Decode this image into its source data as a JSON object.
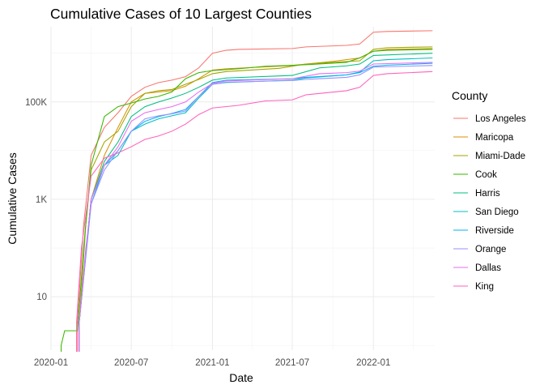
{
  "chart_data": {
    "type": "line",
    "title": "Cumulative Cases of 10 Largest Counties",
    "xlabel": "Date",
    "ylabel": "Cumulative Cases",
    "y_scale": "log10",
    "x_ticks": [
      "2020-01",
      "2020-07",
      "2021-01",
      "2021-07",
      "2022-01"
    ],
    "y_ticks": [
      {
        "value": 10,
        "label": "10"
      },
      {
        "value": 1000,
        "label": "1K"
      },
      {
        "value": 100000,
        "label": "100K"
      }
    ],
    "xlim": [
      "2020-01-01",
      "2022-05-20"
    ],
    "ylim": [
      0.8,
      3500000
    ],
    "grid": true,
    "legend": {
      "title": "County",
      "position": "right"
    },
    "series": [
      {
        "name": "Los Angeles",
        "color": "#F8766D",
        "points": [
          [
            "2020-03-01",
            3
          ],
          [
            "2020-03-15",
            300
          ],
          [
            "2020-04-01",
            8000
          ],
          [
            "2020-05-01",
            30000
          ],
          [
            "2020-06-01",
            60000
          ],
          [
            "2020-07-01",
            130000
          ],
          [
            "2020-08-01",
            200000
          ],
          [
            "2020-09-01",
            250000
          ],
          [
            "2020-10-01",
            280000
          ],
          [
            "2020-11-01",
            330000
          ],
          [
            "2020-12-01",
            500000
          ],
          [
            "2021-01-01",
            1000000
          ],
          [
            "2021-02-01",
            1150000
          ],
          [
            "2021-03-01",
            1200000
          ],
          [
            "2021-07-01",
            1250000
          ],
          [
            "2021-08-01",
            1350000
          ],
          [
            "2021-11-01",
            1450000
          ],
          [
            "2021-12-01",
            1550000
          ],
          [
            "2022-01-01",
            2700000
          ],
          [
            "2022-02-01",
            2800000
          ],
          [
            "2022-05-15",
            2900000
          ]
        ]
      },
      {
        "name": "Maricopa",
        "color": "#D89000",
        "points": [
          [
            "2020-03-05",
            3
          ],
          [
            "2020-04-01",
            1000
          ],
          [
            "2020-05-01",
            8000
          ],
          [
            "2020-06-01",
            30000
          ],
          [
            "2020-07-01",
            100000
          ],
          [
            "2020-08-01",
            150000
          ],
          [
            "2020-09-01",
            160000
          ],
          [
            "2020-10-01",
            170000
          ],
          [
            "2020-11-01",
            210000
          ],
          [
            "2020-12-01",
            300000
          ],
          [
            "2021-01-01",
            450000
          ],
          [
            "2021-02-01",
            480000
          ],
          [
            "2021-07-01",
            560000
          ],
          [
            "2021-10-01",
            680000
          ],
          [
            "2021-12-01",
            800000
          ],
          [
            "2022-01-01",
            1100000
          ],
          [
            "2022-02-01",
            1200000
          ],
          [
            "2022-05-15",
            1250000
          ]
        ]
      },
      {
        "name": "Miami-Dade",
        "color": "#A3A500",
        "points": [
          [
            "2020-03-05",
            3
          ],
          [
            "2020-03-20",
            300
          ],
          [
            "2020-04-01",
            4000
          ],
          [
            "2020-05-01",
            15000
          ],
          [
            "2020-06-01",
            25000
          ],
          [
            "2020-07-01",
            80000
          ],
          [
            "2020-08-01",
            150000
          ],
          [
            "2020-09-01",
            170000
          ],
          [
            "2020-10-01",
            180000
          ],
          [
            "2020-11-01",
            230000
          ],
          [
            "2020-12-01",
            290000
          ],
          [
            "2021-01-01",
            380000
          ],
          [
            "2021-02-01",
            420000
          ],
          [
            "2021-06-01",
            490000
          ],
          [
            "2021-08-01",
            600000
          ],
          [
            "2021-10-01",
            650000
          ],
          [
            "2021-12-01",
            700000
          ],
          [
            "2022-01-01",
            1200000
          ],
          [
            "2022-02-01",
            1300000
          ],
          [
            "2022-05-15",
            1350000
          ]
        ]
      },
      {
        "name": "Cook",
        "color": "#39B600",
        "points": [
          [
            "2020-01-24",
            1
          ],
          [
            "2020-02-01",
            2
          ],
          [
            "2020-03-01",
            2
          ],
          [
            "2020-03-15",
            100
          ],
          [
            "2020-04-01",
            5000
          ],
          [
            "2020-05-01",
            50000
          ],
          [
            "2020-06-01",
            80000
          ],
          [
            "2020-07-01",
            95000
          ],
          [
            "2020-08-01",
            115000
          ],
          [
            "2020-09-01",
            130000
          ],
          [
            "2020-10-01",
            160000
          ],
          [
            "2020-11-01",
            300000
          ],
          [
            "2020-12-01",
            400000
          ],
          [
            "2021-01-01",
            440000
          ],
          [
            "2021-03-01",
            480000
          ],
          [
            "2021-05-01",
            540000
          ],
          [
            "2021-08-01",
            580000
          ],
          [
            "2021-11-01",
            650000
          ],
          [
            "2021-12-01",
            800000
          ],
          [
            "2022-01-01",
            1100000
          ],
          [
            "2022-02-01",
            1150000
          ],
          [
            "2022-05-15",
            1200000
          ]
        ]
      },
      {
        "name": "Harris",
        "color": "#00BF7D",
        "points": [
          [
            "2020-03-05",
            3
          ],
          [
            "2020-04-01",
            1000
          ],
          [
            "2020-05-01",
            6000
          ],
          [
            "2020-06-01",
            15000
          ],
          [
            "2020-07-01",
            50000
          ],
          [
            "2020-08-01",
            80000
          ],
          [
            "2020-09-01",
            100000
          ],
          [
            "2020-10-01",
            120000
          ],
          [
            "2020-11-01",
            150000
          ],
          [
            "2020-12-01",
            200000
          ],
          [
            "2021-01-01",
            280000
          ],
          [
            "2021-02-01",
            310000
          ],
          [
            "2021-07-01",
            350000
          ],
          [
            "2021-09-01",
            500000
          ],
          [
            "2021-11-01",
            550000
          ],
          [
            "2021-12-01",
            600000
          ],
          [
            "2022-01-01",
            900000
          ],
          [
            "2022-05-15",
            1000000
          ]
        ]
      },
      {
        "name": "San Diego",
        "color": "#00BFC4",
        "points": [
          [
            "2020-03-05",
            3
          ],
          [
            "2020-04-01",
            1000
          ],
          [
            "2020-05-01",
            5000
          ],
          [
            "2020-06-01",
            8000
          ],
          [
            "2020-07-01",
            25000
          ],
          [
            "2020-08-01",
            35000
          ],
          [
            "2020-09-01",
            45000
          ],
          [
            "2020-10-01",
            52000
          ],
          [
            "2020-11-01",
            60000
          ],
          [
            "2020-12-01",
            120000
          ],
          [
            "2021-01-01",
            230000
          ],
          [
            "2021-02-01",
            250000
          ],
          [
            "2021-07-01",
            280000
          ],
          [
            "2021-08-01",
            310000
          ],
          [
            "2021-11-01",
            360000
          ],
          [
            "2021-12-01",
            410000
          ],
          [
            "2022-01-01",
            700000
          ],
          [
            "2022-02-01",
            740000
          ],
          [
            "2022-05-15",
            800000
          ]
        ]
      },
      {
        "name": "Riverside",
        "color": "#00B0F6",
        "points": [
          [
            "2020-03-05",
            3
          ],
          [
            "2020-04-01",
            800
          ],
          [
            "2020-05-01",
            5000
          ],
          [
            "2020-06-01",
            10000
          ],
          [
            "2020-07-01",
            25000
          ],
          [
            "2020-08-01",
            40000
          ],
          [
            "2020-09-01",
            50000
          ],
          [
            "2020-10-01",
            58000
          ],
          [
            "2020-11-01",
            70000
          ],
          [
            "2020-12-01",
            130000
          ],
          [
            "2021-01-01",
            250000
          ],
          [
            "2021-02-01",
            280000
          ],
          [
            "2021-07-01",
            300000
          ],
          [
            "2021-08-01",
            320000
          ],
          [
            "2021-11-01",
            360000
          ],
          [
            "2021-12-01",
            400000
          ],
          [
            "2022-01-01",
            540000
          ],
          [
            "2022-02-01",
            570000
          ],
          [
            "2022-05-15",
            620000
          ]
        ]
      },
      {
        "name": "Orange",
        "color": "#9590FF",
        "points": [
          [
            "2020-03-05",
            3
          ],
          [
            "2020-03-20",
            100
          ],
          [
            "2020-04-01",
            800
          ],
          [
            "2020-05-01",
            4000
          ],
          [
            "2020-06-01",
            10000
          ],
          [
            "2020-07-01",
            25000
          ],
          [
            "2020-08-01",
            45000
          ],
          [
            "2020-09-01",
            52000
          ],
          [
            "2020-10-01",
            57000
          ],
          [
            "2020-11-01",
            65000
          ],
          [
            "2020-12-01",
            130000
          ],
          [
            "2021-01-01",
            230000
          ],
          [
            "2021-02-01",
            255000
          ],
          [
            "2021-07-01",
            275000
          ],
          [
            "2021-08-01",
            290000
          ],
          [
            "2021-11-01",
            320000
          ],
          [
            "2021-12-01",
            360000
          ],
          [
            "2022-01-01",
            520000
          ],
          [
            "2022-05-15",
            560000
          ]
        ]
      },
      {
        "name": "Dallas",
        "color": "#E76BF3",
        "points": [
          [
            "2020-03-05",
            3
          ],
          [
            "2020-04-01",
            1000
          ],
          [
            "2020-05-01",
            5000
          ],
          [
            "2020-06-01",
            12000
          ],
          [
            "2020-07-01",
            40000
          ],
          [
            "2020-08-01",
            60000
          ],
          [
            "2020-09-01",
            70000
          ],
          [
            "2020-10-01",
            80000
          ],
          [
            "2020-11-01",
            100000
          ],
          [
            "2020-12-01",
            160000
          ],
          [
            "2021-01-01",
            240000
          ],
          [
            "2021-02-01",
            270000
          ],
          [
            "2021-07-01",
            300000
          ],
          [
            "2021-09-01",
            380000
          ],
          [
            "2021-11-01",
            400000
          ],
          [
            "2021-12-01",
            430000
          ],
          [
            "2022-01-01",
            600000
          ],
          [
            "2022-05-15",
            650000
          ]
        ]
      },
      {
        "name": "King",
        "color": "#FF62BC",
        "points": [
          [
            "2020-02-28",
            3
          ],
          [
            "2020-03-10",
            100
          ],
          [
            "2020-04-01",
            3000
          ],
          [
            "2020-05-01",
            7000
          ],
          [
            "2020-06-01",
            9000
          ],
          [
            "2020-07-01",
            12000
          ],
          [
            "2020-08-01",
            17000
          ],
          [
            "2020-09-01",
            20000
          ],
          [
            "2020-10-01",
            25000
          ],
          [
            "2020-11-01",
            35000
          ],
          [
            "2020-12-01",
            55000
          ],
          [
            "2021-01-01",
            75000
          ],
          [
            "2021-03-01",
            85000
          ],
          [
            "2021-05-01",
            105000
          ],
          [
            "2021-07-01",
            110000
          ],
          [
            "2021-08-01",
            140000
          ],
          [
            "2021-11-01",
            170000
          ],
          [
            "2021-12-01",
            200000
          ],
          [
            "2022-01-01",
            350000
          ],
          [
            "2022-02-01",
            380000
          ],
          [
            "2022-05-15",
            420000
          ]
        ]
      }
    ]
  }
}
